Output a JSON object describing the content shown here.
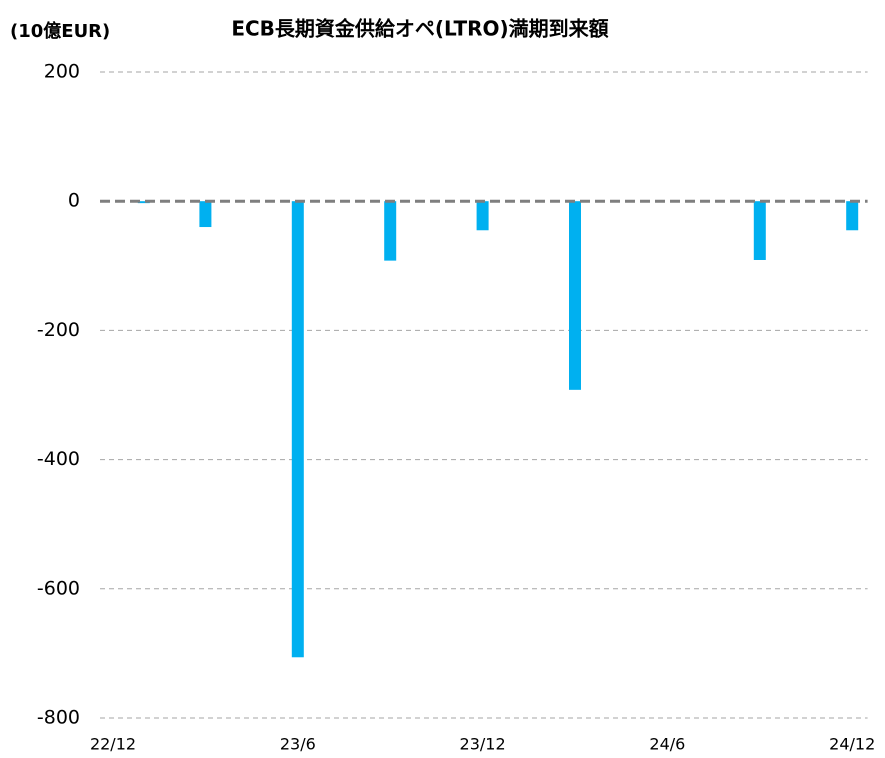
{
  "chart_data": {
    "type": "bar",
    "title": "ECB長期資金供給オペ(LTRO)満期到来額",
    "y_label": "(10億EUR)",
    "categories": [
      "22/12",
      null,
      null,
      null,
      null,
      null,
      "23/6",
      null,
      null,
      null,
      null,
      null,
      "23/12",
      null,
      null,
      null,
      null,
      null,
      "24/6",
      null,
      null,
      null,
      null,
      null,
      "24/12"
    ],
    "values": [
      null,
      -3,
      null,
      -40,
      null,
      null,
      -706,
      null,
      null,
      -92,
      null,
      null,
      -45,
      null,
      null,
      -292,
      null,
      null,
      null,
      null,
      null,
      -91,
      null,
      null,
      -45
    ],
    "color": "#00b0f0",
    "ylim": [
      -800,
      200
    ],
    "yticks": [
      -800,
      -600,
      -400,
      -200,
      0,
      200
    ],
    "grid": true
  }
}
